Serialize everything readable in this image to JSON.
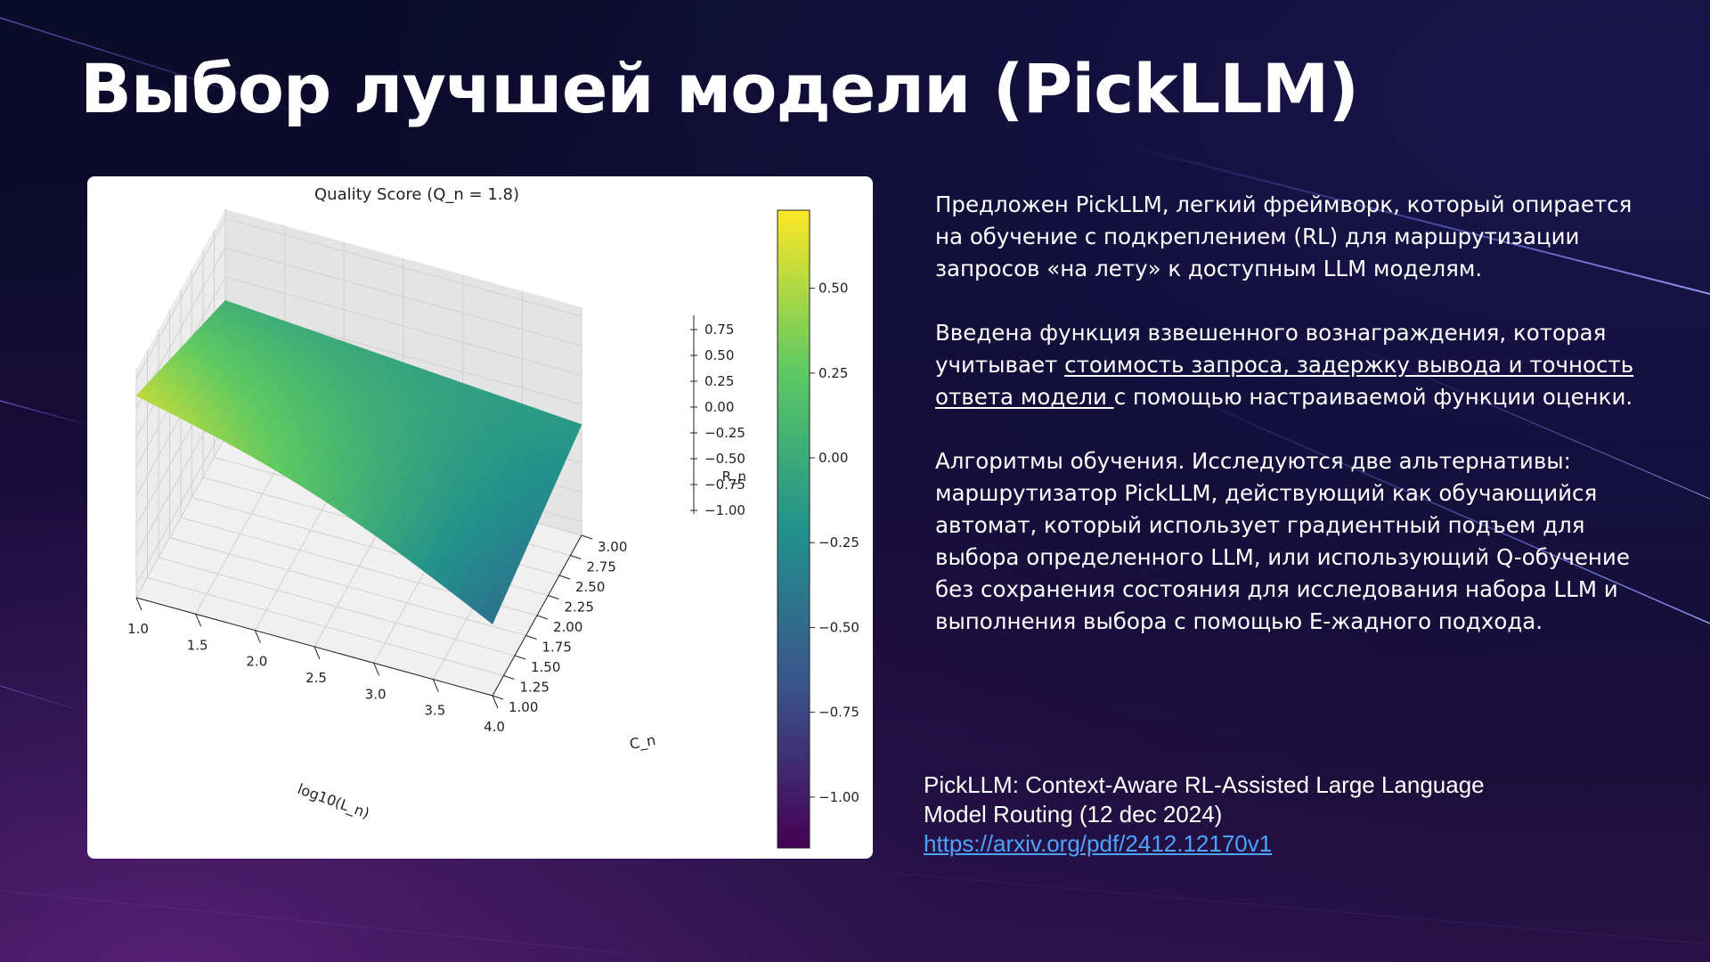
{
  "slide": {
    "title": "Выбор лучшей модели (PickLLM)"
  },
  "body": {
    "p1": "Предложен PickLLM, легкий фреймворк, который опирается на обучение с подкреплением (RL) для маршрутизации запросов «на лету» к доступным LLM моделям.",
    "p2_before": "Введена функция взвешенного вознаграждения, которая учитывает ",
    "p2_underlined": "стоимость запроса, задержку вывода и точность ответа модели ",
    "p2_after": "с помощью настраиваемой функции оценки.",
    "p3": "Алгоритмы обучения. Исследуются две альтернативы: маршрутизатор PickLLM, действующий как обучающийся автомат, который использует градиентный подъем для выбора определенного LLM, или использующий Q-обучение без сохранения состояния для исследования набора LLM и выполнения выбора с помощью E-жадного подхода."
  },
  "reference": {
    "line1": "PickLLM: Context-Aware RL-Assisted Large Language",
    "line2": "Model Routing (12 dec 2024)",
    "link": "https://arxiv.org/pdf/2412.12170v1"
  },
  "colors": {
    "link": "#4ea3ff",
    "background": "#0e0b2e",
    "colormap": [
      "#440154",
      "#3b528b",
      "#21918c",
      "#5ec962",
      "#fde725"
    ]
  },
  "chart_data": {
    "type": "surface3d",
    "title": "Quality Score (Q_n = 1.8)",
    "xlabel": "log10(L_n)",
    "ylabel": "C_n",
    "zlabel": "R_n",
    "x_ticks": [
      "1.0",
      "1.5",
      "2.0",
      "2.5",
      "3.0",
      "3.5",
      "4.0"
    ],
    "y_ticks": [
      "1.00",
      "1.25",
      "1.50",
      "1.75",
      "2.00",
      "2.25",
      "2.50",
      "2.75",
      "3.00"
    ],
    "z_ticks": [
      "0.75",
      "0.50",
      "0.25",
      "0.00",
      "−0.25",
      "−0.50",
      "−0.75",
      "−1.00"
    ],
    "xlim": [
      1.0,
      4.0
    ],
    "ylim": [
      1.0,
      3.0
    ],
    "zlim": [
      -1.0,
      0.75
    ],
    "colorbar": {
      "colormap": "viridis",
      "range": [
        -1.15,
        0.73
      ],
      "ticks": [
        "0.50",
        "0.25",
        "0.00",
        "−0.25",
        "−0.50",
        "−0.75",
        "−1.00"
      ],
      "tick_values": [
        0.5,
        0.25,
        0.0,
        -0.25,
        -0.5,
        -0.75,
        -1.0
      ]
    },
    "corners": [
      {
        "x": 1.0,
        "y": 1.0,
        "z": 0.55
      },
      {
        "x": 4.0,
        "y": 1.0,
        "z": -0.45
      },
      {
        "x": 1.0,
        "y": 3.0,
        "z": 0.05
      },
      {
        "x": 4.0,
        "y": 3.0,
        "z": -0.15
      }
    ],
    "grid": true
  }
}
